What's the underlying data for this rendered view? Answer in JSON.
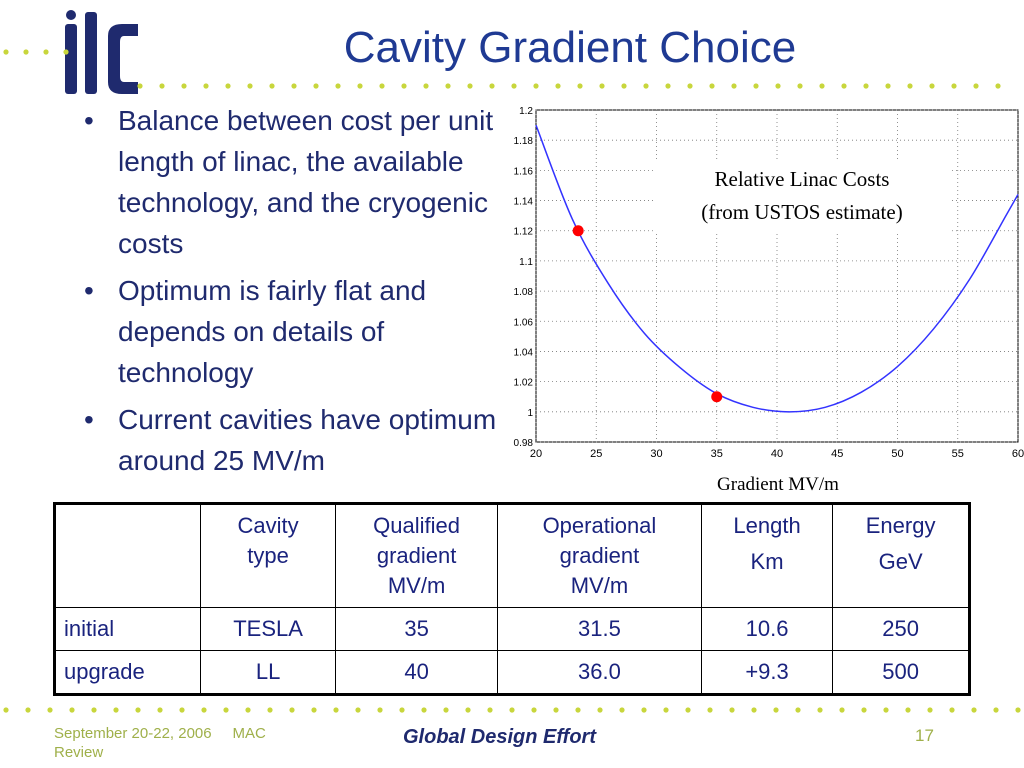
{
  "slide": {
    "title": "Cavity Gradient Choice",
    "bullets": [
      "Balance between cost per unit length of linac, the available technology, and the cryogenic costs",
      "Optimum is fairly flat and depends on details of technology",
      "Current cavities have optimum around 25 MV/m"
    ]
  },
  "logo": {
    "text": "ilc",
    "color": "#1f2a6e"
  },
  "accent_colors": {
    "title": "#1f3a93",
    "dots": "#c8d63c",
    "footer": "#9fb04a",
    "curve": "#3333ff",
    "markers": "#ff0000"
  },
  "chart_data": {
    "type": "line",
    "title": "",
    "xlabel": "Gradient MV/m",
    "ylabel": "",
    "annotation": [
      "Relative Linac Costs",
      "(from USTOS estimate)"
    ],
    "xlim": [
      20,
      60
    ],
    "ylim": [
      0.98,
      1.2
    ],
    "x_ticks": [
      "20",
      "25",
      "30",
      "35",
      "40",
      "45",
      "50",
      "55",
      "60"
    ],
    "y_ticks": [
      "0.98",
      "1",
      "1.02",
      "1.04",
      "1.06",
      "1.08",
      "1.1",
      "1.12",
      "1.14",
      "1.16",
      "1.18",
      "1.2"
    ],
    "grid": true,
    "series": [
      {
        "x": [
          20,
          23,
          26,
          29,
          32,
          35,
          38,
          41,
          44,
          47,
          50,
          53,
          56,
          59,
          60
        ],
        "values": [
          1.19,
          1.128,
          1.085,
          1.052,
          1.029,
          1.012,
          1.003,
          1.0,
          1.003,
          1.013,
          1.03,
          1.055,
          1.088,
          1.13,
          1.144
        ]
      }
    ],
    "markers": [
      {
        "x": 23.5,
        "y": 1.12
      },
      {
        "x": 35,
        "y": 1.01
      }
    ]
  },
  "table": {
    "headers": [
      [
        ""
      ],
      [
        "Cavity",
        "type"
      ],
      [
        "Qualified",
        "gradient",
        "MV/m"
      ],
      [
        "Operational",
        "gradient",
        "MV/m"
      ],
      [
        "Length",
        "Km"
      ],
      [
        "Energy",
        "GeV"
      ]
    ],
    "rows": [
      [
        "initial",
        "TESLA",
        "35",
        "31.5",
        "10.6",
        "250"
      ],
      [
        "upgrade",
        "LL",
        "40",
        "36.0",
        "+9.3",
        "500"
      ]
    ]
  },
  "footer": {
    "date": "September 20-22, 2006",
    "event": "MAC",
    "event2": "Review",
    "center": "Global Design Effort",
    "page": "17"
  }
}
